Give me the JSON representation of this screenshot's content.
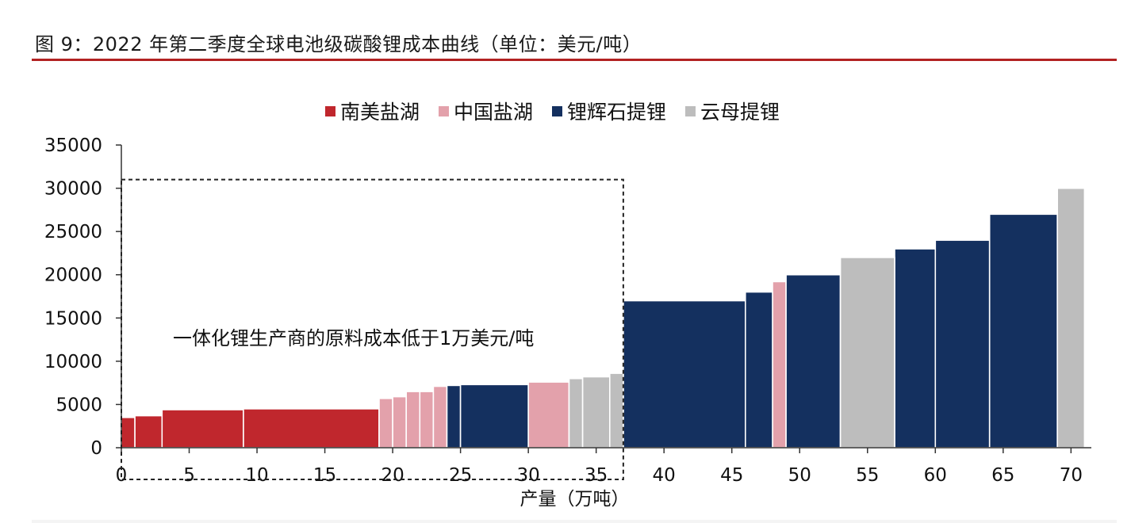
{
  "header": {
    "title": "图 9：2022 年第二季度全球电池级碳酸锂成本曲线（单位：美元/吨）"
  },
  "colors": {
    "accent_rule": "#b22222"
  },
  "chart_data": {
    "type": "bar",
    "subtype": "cost-curve (variable-width bars)",
    "xlabel": "产量（万吨）",
    "ylabel": "",
    "xlim": [
      0,
      71.5
    ],
    "ylim": [
      0,
      35000
    ],
    "x_ticks": [
      0,
      5,
      10,
      15,
      20,
      25,
      30,
      35,
      40,
      45,
      50,
      55,
      60,
      65,
      70
    ],
    "y_ticks": [
      0,
      5000,
      10000,
      15000,
      20000,
      25000,
      30000,
      35000
    ],
    "grid": false,
    "legend_position": "top-center",
    "annotation": "一体化锂生产商的原料成本低于1万美元/吨",
    "highlight_region": {
      "x": [
        0,
        37
      ],
      "y": [
        0,
        31000
      ]
    },
    "series": [
      {
        "name": "南美盐湖",
        "color": "#c0272d",
        "bars": [
          {
            "x0": 0,
            "x1": 1,
            "value": 3500
          },
          {
            "x0": 1,
            "x1": 3,
            "value": 3700
          },
          {
            "x0": 3,
            "x1": 9,
            "value": 4400
          },
          {
            "x0": 9,
            "x1": 19,
            "value": 4500
          }
        ]
      },
      {
        "name": "中国盐湖",
        "color": "#e3a1ab",
        "bars": [
          {
            "x0": 19,
            "x1": 20,
            "value": 5700
          },
          {
            "x0": 20,
            "x1": 21,
            "value": 5900
          },
          {
            "x0": 21,
            "x1": 22,
            "value": 6500
          },
          {
            "x0": 22,
            "x1": 23,
            "value": 6500
          },
          {
            "x0": 23,
            "x1": 24,
            "value": 7100
          },
          {
            "x0": 30,
            "x1": 33,
            "value": 7600
          },
          {
            "x0": 48,
            "x1": 49,
            "value": 19200
          }
        ]
      },
      {
        "name": "锂辉石提锂",
        "color": "#14305f",
        "bars": [
          {
            "x0": 24,
            "x1": 25,
            "value": 7200
          },
          {
            "x0": 25,
            "x1": 30,
            "value": 7300
          },
          {
            "x0": 37,
            "x1": 46,
            "value": 17000
          },
          {
            "x0": 46,
            "x1": 48,
            "value": 18000
          },
          {
            "x0": 49,
            "x1": 53,
            "value": 20000
          },
          {
            "x0": 57,
            "x1": 60,
            "value": 23000
          },
          {
            "x0": 60,
            "x1": 64,
            "value": 24000
          },
          {
            "x0": 64,
            "x1": 69,
            "value": 27000
          }
        ]
      },
      {
        "name": "云母提锂",
        "color": "#bdbdbd",
        "bars": [
          {
            "x0": 33,
            "x1": 34,
            "value": 8000
          },
          {
            "x0": 34,
            "x1": 36,
            "value": 8200
          },
          {
            "x0": 36,
            "x1": 37,
            "value": 8600
          },
          {
            "x0": 53,
            "x1": 57,
            "value": 22000
          },
          {
            "x0": 69,
            "x1": 71,
            "value": 30000
          }
        ]
      }
    ]
  }
}
